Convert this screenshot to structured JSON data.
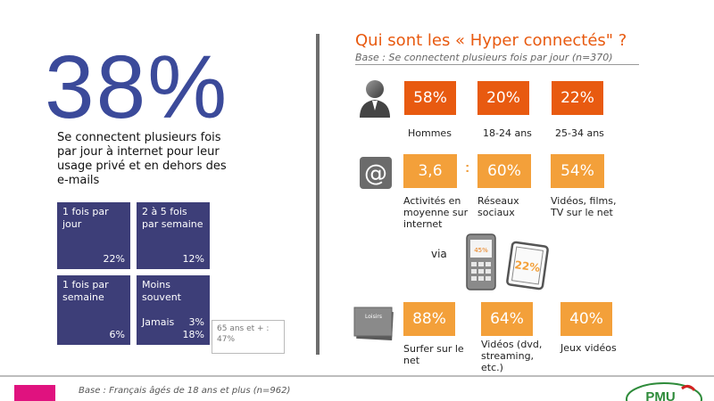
{
  "left": {
    "big_percent": "38%",
    "description": "Se connectent plusieurs fois par jour à internet pour leur usage privé et en dehors des e-mails",
    "tiles": [
      {
        "label": "1 fois par jour",
        "value": "22%"
      },
      {
        "label": "2 à 5 fois par semaine",
        "value": "12%"
      },
      {
        "label": "1 fois par semaine",
        "value": "6%"
      },
      {
        "label": "Moins souvent",
        "value": "3%",
        "label2": "Jamais",
        "value2": "18%"
      }
    ],
    "note_65": "65 ans et + : 47%"
  },
  "right": {
    "title": "Qui sont les « Hyper connectés\" ?",
    "base": "Base : Se connectent plusieurs fois par jour (n=370)",
    "row1": [
      {
        "value": "58%",
        "caption": "Hommes"
      },
      {
        "value": "20%",
        "caption": "18-24 ans"
      },
      {
        "value": "22%",
        "caption": "25-34 ans"
      }
    ],
    "row2": {
      "items": [
        {
          "value": "3,6",
          "caption": "Activités en moyenne sur internet"
        },
        {
          "value": "60%",
          "caption": "Réseaux sociaux"
        },
        {
          "value": "54%",
          "caption": "Vidéos, films, TV sur le net"
        }
      ],
      "separator": ":",
      "via": "via",
      "phone_value": "45%",
      "tablet_value": "22%"
    },
    "row3": {
      "icon_label": "Loisirs",
      "items": [
        {
          "value": "88%",
          "caption": "Surfer sur le net"
        },
        {
          "value": "64%",
          "caption": "Vidéos (dvd, streaming, etc.)"
        },
        {
          "value": "40%",
          "caption": "Jeux vidéos"
        }
      ]
    }
  },
  "footer": {
    "base": "Base : Français âgés de 18 ans et plus (n=962)",
    "logo_text": "PMU"
  },
  "colors": {
    "accent_orange": "#e85a10",
    "light_orange": "#f3a03a",
    "navy": "#3d3e78",
    "big_number_blue": "#3b4a9a",
    "pink": "#e0127f"
  }
}
